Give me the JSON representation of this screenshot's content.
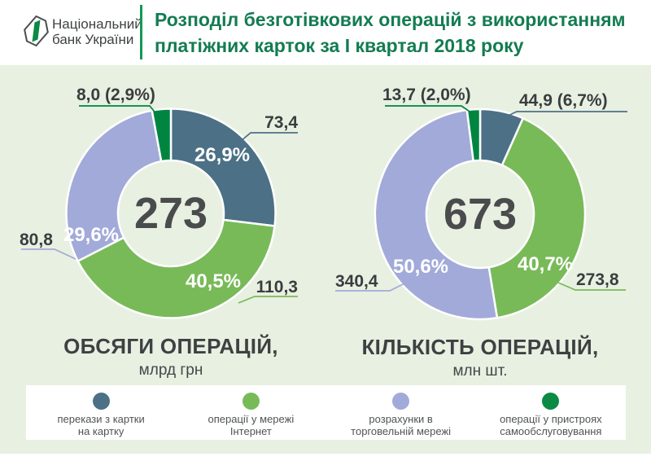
{
  "header": {
    "bank_name_line1": "Національний",
    "bank_name_line2": "банк України",
    "title_line1": "Розподіл безготівкових операцій з використанням",
    "title_line2": "платіжних карток за І квартал 2018 року"
  },
  "chart_data": [
    {
      "type": "donut",
      "title": "ОБСЯГИ ОПЕРАЦІЙ,",
      "unit": "млрд грн",
      "total": 273,
      "total_label": "273",
      "slices": [
        {
          "name": "перекази з картки на картку",
          "value": 73.4,
          "pct": 26.9,
          "value_label": "73,4",
          "pct_label": "26,9%",
          "color": "#4c7086"
        },
        {
          "name": "операції у мережі Інтернет",
          "value": 110.3,
          "pct": 40.5,
          "value_label": "110,3",
          "pct_label": "40,5%",
          "color": "#79ba58"
        },
        {
          "name": "розрахунки в торговельній мережі",
          "value": 80.8,
          "pct": 29.6,
          "value_label": "80,8",
          "pct_label": "29,6%",
          "color": "#a2aad9"
        },
        {
          "name": "операції у пристроях самообслуговування",
          "value": 8.0,
          "pct": 2.9,
          "value_label": "8,0 (2,9%)",
          "pct_label": "",
          "color": "#008540"
        }
      ]
    },
    {
      "type": "donut",
      "title": "КІЛЬКІСТЬ ОПЕРАЦІЙ,",
      "unit": "млн шт.",
      "total": 673,
      "total_label": "673",
      "slices": [
        {
          "name": "перекази з картки на картку",
          "value": 44.9,
          "pct": 6.7,
          "value_label": "44,9 (6,7%)",
          "pct_label": "",
          "color": "#4c7086"
        },
        {
          "name": "операції у мережі Інтернет",
          "value": 273.8,
          "pct": 40.7,
          "value_label": "273,8",
          "pct_label": "40,7%",
          "color": "#79ba58"
        },
        {
          "name": "розрахунки в торговельній мережі",
          "value": 340.4,
          "pct": 50.6,
          "value_label": "340,4",
          "pct_label": "50,6%",
          "color": "#a2aad9"
        },
        {
          "name": "операції у пристроях самообслуговування",
          "value": 13.7,
          "pct": 2.0,
          "value_label": "13,7 (2,0%)",
          "pct_label": "",
          "color": "#008540"
        }
      ]
    }
  ],
  "legend": {
    "items": [
      {
        "line1": "перекази з картки",
        "line2": "на картку",
        "color": "#4c7086"
      },
      {
        "line1": "операції у мережі",
        "line2": "Інтернет",
        "color": "#79ba58"
      },
      {
        "line1": "розрахунки в",
        "line2": "торговельній мережі",
        "color": "#a2aad9"
      },
      {
        "line1": "операції у пристроях",
        "line2": "самообслуговування",
        "color": "#0b8a44"
      }
    ]
  },
  "colors": {
    "background": "#e8f0e1",
    "title_green": "#137c52",
    "divider_green": "#129a55",
    "text_dark": "#3e4143",
    "white": "#ffffff"
  }
}
